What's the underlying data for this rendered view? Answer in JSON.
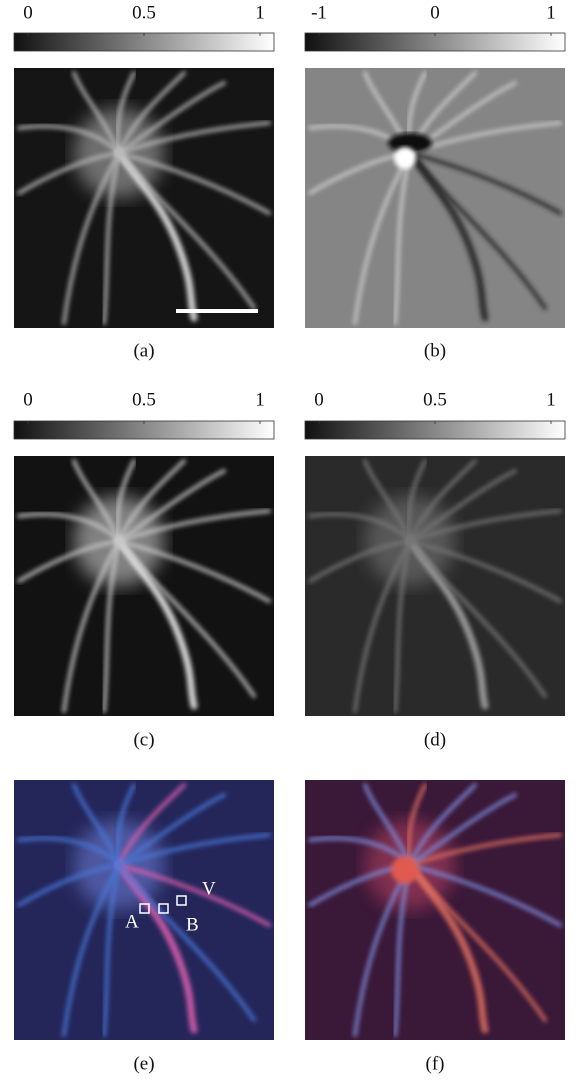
{
  "panels": [
    {
      "label": "(a)",
      "colorbar": {
        "lim": [
          0,
          1
        ],
        "ticks": [
          0,
          0.5,
          1
        ]
      }
    },
    {
      "label": "(b)",
      "colorbar": {
        "lim": [
          -1,
          1
        ],
        "ticks": [
          -1,
          0,
          1
        ]
      }
    },
    {
      "label": "(c)",
      "colorbar": {
        "lim": [
          0,
          1
        ],
        "ticks": [
          0,
          0.5,
          1
        ]
      }
    },
    {
      "label": "(d)",
      "colorbar": {
        "lim": [
          0,
          1
        ],
        "ticks": [
          0,
          0.5,
          1
        ]
      }
    },
    {
      "label": "(e)",
      "annotations": [
        "A",
        "B",
        "V"
      ]
    },
    {
      "label": "(f)"
    }
  ]
}
